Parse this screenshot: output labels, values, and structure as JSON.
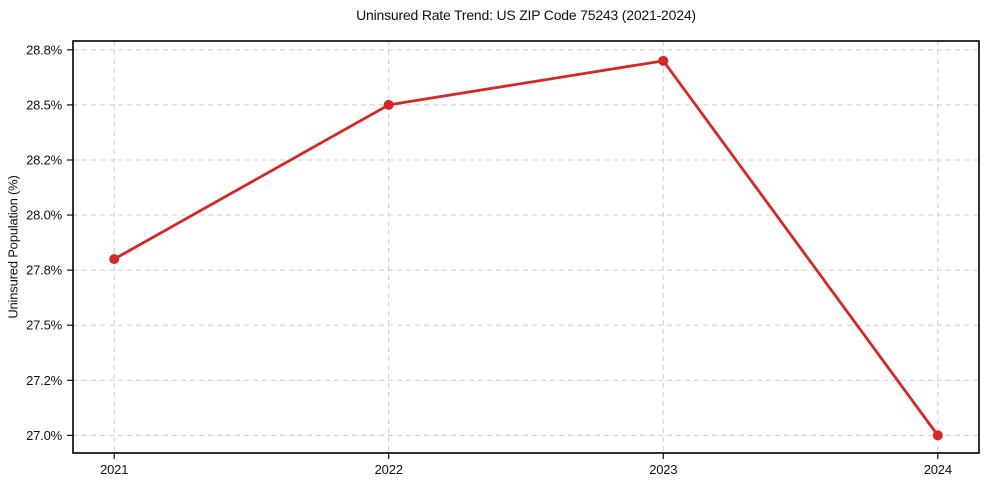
{
  "chart_data": {
    "type": "line",
    "title": "Uninsured Rate Trend: US ZIP Code 75243 (2021-2024)",
    "xlabel": "",
    "ylabel": "Uninsured Population (%)",
    "x": [
      2021,
      2022,
      2023,
      2024
    ],
    "x_tick_labels": [
      "2021",
      "2022",
      "2023",
      "2024"
    ],
    "series": [
      {
        "name": "Uninsured rate",
        "values": [
          27.8,
          28.5,
          28.7,
          27.0
        ],
        "color": "#d62728",
        "marker": "circle"
      }
    ],
    "y_ticks": [
      27.0,
      27.25,
      27.5,
      27.75,
      28.0,
      28.25,
      28.5,
      28.75
    ],
    "y_tick_labels": [
      "27.0%",
      "27.2%",
      "27.5%",
      "27.8%",
      "28.0%",
      "28.2%",
      "28.5%",
      "28.8%"
    ],
    "xlim": [
      2020.85,
      2024.15
    ],
    "ylim": [
      26.92,
      28.79
    ],
    "grid": true,
    "grid_style": "dashed",
    "grid_color": "#cccccc",
    "spine_color": "#000000",
    "legend": false
  }
}
